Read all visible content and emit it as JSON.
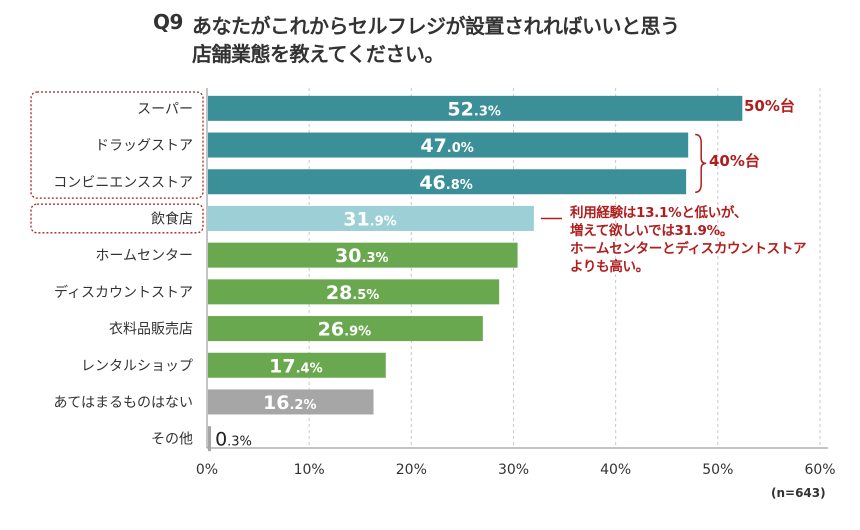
{
  "title": {
    "q_number": "Q9",
    "line1": "あなたがこれからセルフレジが設置されればいいと思う",
    "line2": "店舗業態を教えてください。"
  },
  "chart_data": {
    "type": "bar",
    "orientation": "horizontal",
    "categories": [
      "スーパー",
      "ドラッグストア",
      "コンビニエンスストア",
      "飲食店",
      "ホームセンター",
      "ディスカウントストア",
      "衣料品販売店",
      "レンタルショップ",
      "あてはまるものはない",
      "その他"
    ],
    "values": [
      52.3,
      47.0,
      46.8,
      31.9,
      30.3,
      28.5,
      26.9,
      17.4,
      16.2,
      0.3
    ],
    "value_labels": [
      {
        "int": "52",
        "dec": ".3%"
      },
      {
        "int": "47",
        "dec": ".0%"
      },
      {
        "int": "46",
        "dec": ".8%"
      },
      {
        "int": "31",
        "dec": ".9%"
      },
      {
        "int": "30",
        "dec": ".3%"
      },
      {
        "int": "28",
        "dec": ".5%"
      },
      {
        "int": "26",
        "dec": ".9%"
      },
      {
        "int": "17",
        "dec": ".4%"
      },
      {
        "int": "16",
        "dec": ".2%"
      },
      {
        "int": "0",
        "dec": ".3%"
      }
    ],
    "bar_colors": [
      "#3a8f98",
      "#3a8f98",
      "#3a8f98",
      "#9ccfd6",
      "#6aa84f",
      "#6aa84f",
      "#6aa84f",
      "#6aa84f",
      "#a6a6a6",
      "#a6a6a6"
    ],
    "xlim": [
      0,
      60
    ],
    "xticks": [
      "0%",
      "10%",
      "20%",
      "30%",
      "40%",
      "50%",
      "60%"
    ],
    "grid": true,
    "annotations": {
      "group_50": "50%台",
      "group_40": "40%台",
      "note_lines": [
        "利用経験は13.1%と低いが、",
        "増えて欲しいでは31.9%。",
        "ホームセンターとディスカウントストア",
        "よりも高い。"
      ]
    },
    "sample_size": "(n=643)"
  },
  "colors": {
    "accent_red": "#b11e1e",
    "dotted_box": "#b11e1e"
  }
}
